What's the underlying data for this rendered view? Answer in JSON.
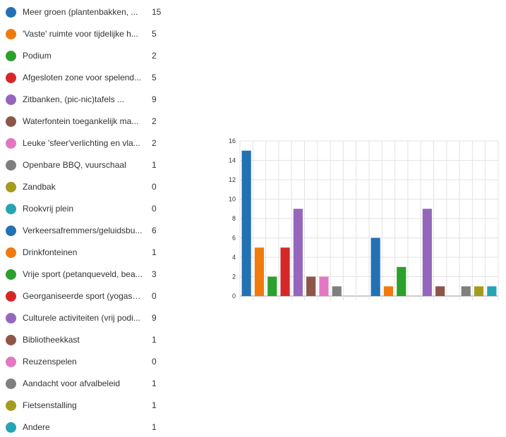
{
  "legend": [
    {
      "label": "Meer groen (plantenbakken, ...",
      "count": "15",
      "color": "#2271b3"
    },
    {
      "label": "'Vaste' ruimte voor tijdelijke h...",
      "count": "5",
      "color": "#f07b0c"
    },
    {
      "label": "Podium",
      "count": "2",
      "color": "#2ca02c"
    },
    {
      "label": "Afgesloten zone voor spelend...",
      "count": "5",
      "color": "#d62728"
    },
    {
      "label": "Zitbanken, (pic-nic)tafels ...",
      "count": "9",
      "color": "#9467bd"
    },
    {
      "label": "Waterfontein toegankelijk ma...",
      "count": "2",
      "color": "#8c564b"
    },
    {
      "label": "Leuke 'sfeer'verlichting en vla...",
      "count": "2",
      "color": "#e377c2"
    },
    {
      "label": "Openbare BBQ, vuurschaal",
      "count": "1",
      "color": "#7f7f7f"
    },
    {
      "label": "Zandbak",
      "count": "0",
      "color": "#a59b1e"
    },
    {
      "label": "Rookvrij plein",
      "count": "0",
      "color": "#26a4b4"
    },
    {
      "label": "Verkeersafremmers/geluidsbu...",
      "count": "6",
      "color": "#2271b3"
    },
    {
      "label": "Drinkfonteinen",
      "count": "1",
      "color": "#f07b0c"
    },
    {
      "label": "Vrije sport (petanqueveld, bea...",
      "count": "3",
      "color": "#2ca02c"
    },
    {
      "label": "Georganiseerde sport (yogase...",
      "count": "0",
      "color": "#d62728"
    },
    {
      "label": "Culturele activiteiten (vrij podi...",
      "count": "9",
      "color": "#9467bd"
    },
    {
      "label": "Bibliotheekkast",
      "count": "1",
      "color": "#8c564b"
    },
    {
      "label": "Reuzenspelen",
      "count": "0",
      "color": "#e377c2"
    },
    {
      "label": "Aandacht voor afvalbeleid",
      "count": "1",
      "color": "#7f7f7f"
    },
    {
      "label": "Fietsenstalling",
      "count": "1",
      "color": "#a59b1e"
    },
    {
      "label": "Andere",
      "count": "1",
      "color": "#26a4b4"
    }
  ],
  "chart_data": {
    "type": "bar",
    "categories": [
      "Meer groen (plantenbakken, ...",
      "'Vaste' ruimte voor tijdelijke h...",
      "Podium",
      "Afgesloten zone voor spelend...",
      "Zitbanken, (pic-nic)tafels ...",
      "Waterfontein toegankelijk ma...",
      "Leuke 'sfeer'verlichting en vla...",
      "Openbare BBQ, vuurschaal",
      "Zandbak",
      "Rookvrij plein",
      "Verkeersafremmers/geluidsbu...",
      "Drinkfonteinen",
      "Vrije sport (petanqueveld, bea...",
      "Georganiseerde sport (yogase...",
      "Culturele activiteiten (vrij podi...",
      "Bibliotheekkast",
      "Reuzenspelen",
      "Aandacht voor afvalbeleid",
      "Fietsenstalling",
      "Andere"
    ],
    "values": [
      15,
      5,
      2,
      5,
      9,
      2,
      2,
      1,
      0,
      0,
      6,
      1,
      3,
      0,
      9,
      1,
      0,
      1,
      1,
      1
    ],
    "colors": [
      "#2271b3",
      "#f07b0c",
      "#2ca02c",
      "#d62728",
      "#9467bd",
      "#8c564b",
      "#e377c2",
      "#7f7f7f",
      "#a59b1e",
      "#26a4b4",
      "#2271b3",
      "#f07b0c",
      "#2ca02c",
      "#d62728",
      "#9467bd",
      "#8c564b",
      "#e377c2",
      "#7f7f7f",
      "#a59b1e",
      "#26a4b4"
    ],
    "yticks": [
      "0",
      "2",
      "4",
      "6",
      "8",
      "10",
      "12",
      "14",
      "16"
    ],
    "ylim": [
      0,
      16
    ],
    "grid": true,
    "legend_position": "left"
  }
}
